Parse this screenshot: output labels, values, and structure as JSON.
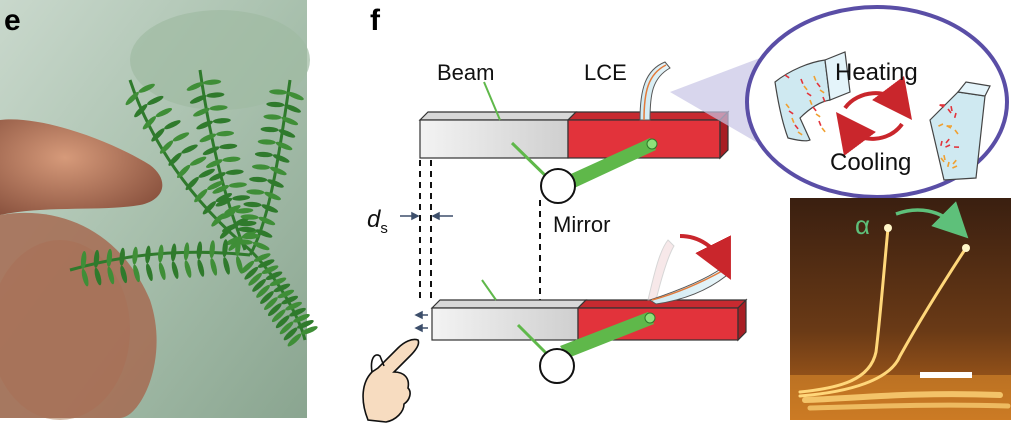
{
  "panels": {
    "e": {
      "letter": "e"
    },
    "f": {
      "letter": "f"
    }
  },
  "labels": {
    "beam": "Beam",
    "lce": "LCE",
    "mirror": "Mirror",
    "ds_main": "d",
    "ds_sub": "s",
    "heating": "Heating",
    "cooling": "Cooling",
    "alpha": "α"
  },
  "colors": {
    "beam_red": "#e2333b",
    "beam_grey": "#e6e6e6",
    "ellipse": "#5a4ea6",
    "laser_green": "#5fb84a",
    "cycle_arrow": "#c9262c",
    "bend_arrow": "#c9262c",
    "alpha_arrow": "#5ec07a"
  }
}
